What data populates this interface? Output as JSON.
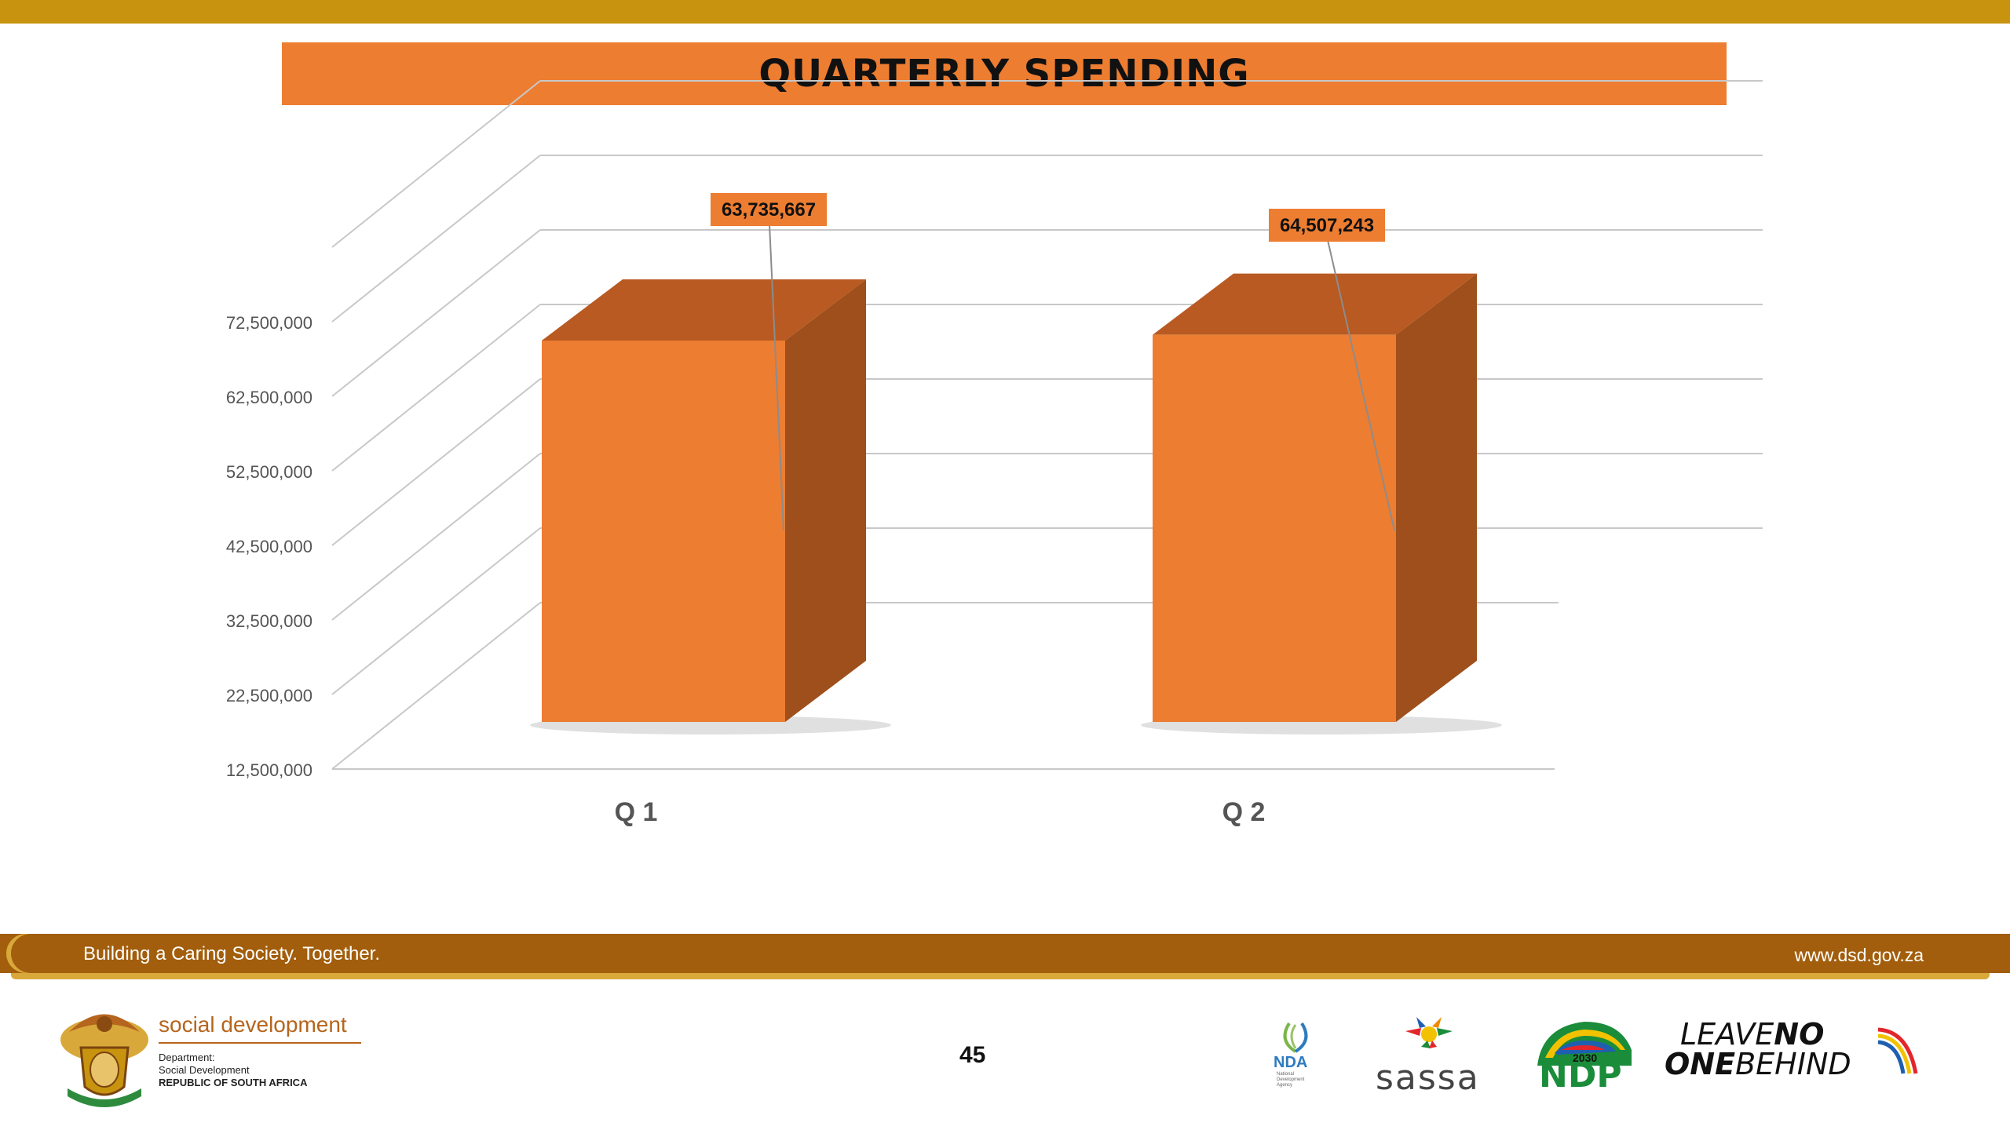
{
  "header": {
    "title": "QUARTERLY SPENDING"
  },
  "chart_data": {
    "type": "bar",
    "categories": [
      "Q 1",
      "Q 2"
    ],
    "values": [
      63735667,
      64507243
    ],
    "data_labels": [
      "63,735,667",
      "64,507,243"
    ],
    "ylim": [
      12500000,
      72500000
    ],
    "yticks": [
      12500000,
      22500000,
      32500000,
      42500000,
      52500000,
      62500000,
      72500000
    ],
    "ytick_labels": [
      "12,500,000",
      "22,500,000",
      "32,500,000",
      "42,500,000",
      "52,500,000",
      "62,500,000",
      "72,500,000"
    ],
    "grid": true,
    "style": "3d-column",
    "colors": {
      "front": "#ed7d31",
      "side": "#9e4f1c",
      "top": "#b85a22",
      "grid": "#c8c8c8",
      "label_box": "#ed7d31"
    }
  },
  "footer": {
    "slogan": "Building a Caring Society. Together.",
    "website": "www.dsd.gov.za",
    "page_number": "45"
  },
  "logos": {
    "department": {
      "name": "social development",
      "line1": "Department:",
      "line2": "Social Development",
      "line3": "REPUBLIC OF SOUTH AFRICA",
      "icon": "coat-of-arms-icon"
    },
    "nda": {
      "text": "NDA",
      "sub1": "National",
      "sub2": "Development",
      "sub3": "Agency",
      "icon": "nda-swirl-icon"
    },
    "sassa": {
      "text": "sassa",
      "icon": "sassa-hands-icon"
    },
    "ndp": {
      "text": "NDP",
      "year": "2030",
      "icon": "ndp-flag-icon"
    },
    "lnob": {
      "leave": "LEAVE",
      "no": "NO",
      "one": "ONE",
      "behind": "BEHIND"
    }
  }
}
